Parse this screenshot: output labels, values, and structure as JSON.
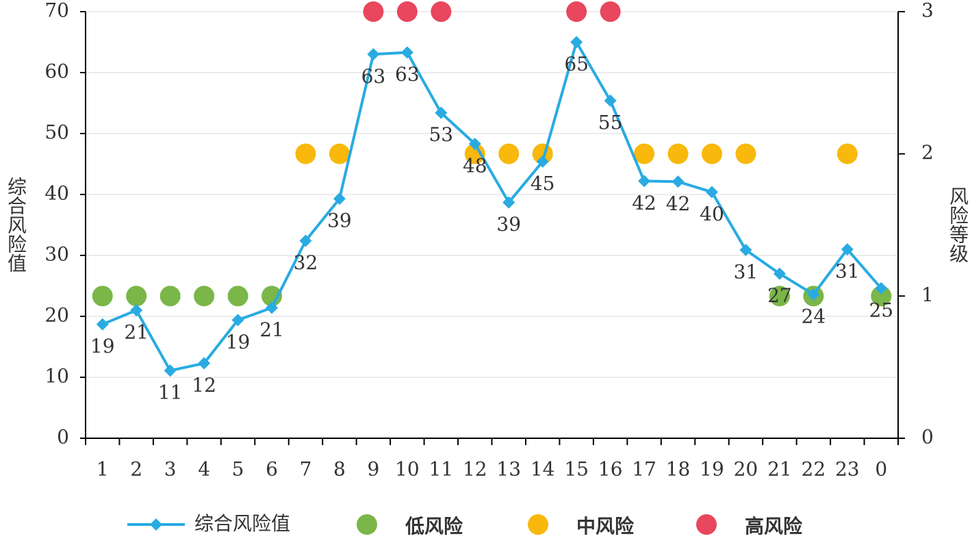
{
  "chart_data": {
    "type": "line",
    "categories": [
      "1",
      "2",
      "3",
      "4",
      "5",
      "6",
      "7",
      "8",
      "9",
      "10",
      "11",
      "12",
      "13",
      "14",
      "15",
      "16",
      "17",
      "18",
      "19",
      "20",
      "21",
      "22",
      "23",
      "0"
    ],
    "y_label": "综合风险值",
    "y2_label": "风险等级",
    "ylim": [
      0,
      70
    ],
    "yticks": [
      0,
      10,
      20,
      30,
      40,
      50,
      60,
      70
    ],
    "y2lim": [
      0,
      3
    ],
    "y2ticks": [
      0,
      1,
      2,
      3
    ],
    "grid": true,
    "legend": "bottom",
    "series": [
      {
        "name": "综合风险值",
        "color": "#29abe2",
        "marker": "diamond",
        "values": [
          18.7,
          21.0,
          11.1,
          12.3,
          19.4,
          21.4,
          32.4,
          39.3,
          63.0,
          63.3,
          53.4,
          48.3,
          38.7,
          45.4,
          65.0,
          55.4,
          42.2,
          42.1,
          40.4,
          30.9,
          27.0,
          23.6,
          31.0,
          24.6
        ],
        "value_labels": [
          "19",
          "21",
          "11",
          "12",
          "19",
          "21",
          "32",
          "39",
          "63",
          "63",
          "53",
          "48",
          "39",
          "45",
          "65",
          "55",
          "42",
          "42",
          "40",
          "31",
          "27",
          "24",
          "31",
          "25"
        ]
      },
      {
        "name": "低风险",
        "color": "#7ab648",
        "marker": "circle",
        "axis": "y2",
        "values": [
          1,
          1,
          1,
          1,
          1,
          1,
          null,
          null,
          null,
          null,
          null,
          null,
          null,
          null,
          null,
          null,
          null,
          null,
          null,
          null,
          1,
          1,
          null,
          1
        ]
      },
      {
        "name": "中风险",
        "color": "#f8b80c",
        "marker": "circle",
        "axis": "y2",
        "values": [
          null,
          null,
          null,
          null,
          null,
          null,
          2,
          2,
          null,
          null,
          null,
          2,
          2,
          2,
          null,
          null,
          2,
          2,
          2,
          2,
          null,
          null,
          2,
          null
        ]
      },
      {
        "name": "高风险",
        "color": "#e8475e",
        "marker": "circle",
        "axis": "y2",
        "values": [
          null,
          null,
          null,
          null,
          null,
          null,
          null,
          null,
          3,
          3,
          3,
          null,
          null,
          null,
          3,
          3,
          null,
          null,
          null,
          null,
          null,
          null,
          null,
          null
        ]
      }
    ]
  }
}
